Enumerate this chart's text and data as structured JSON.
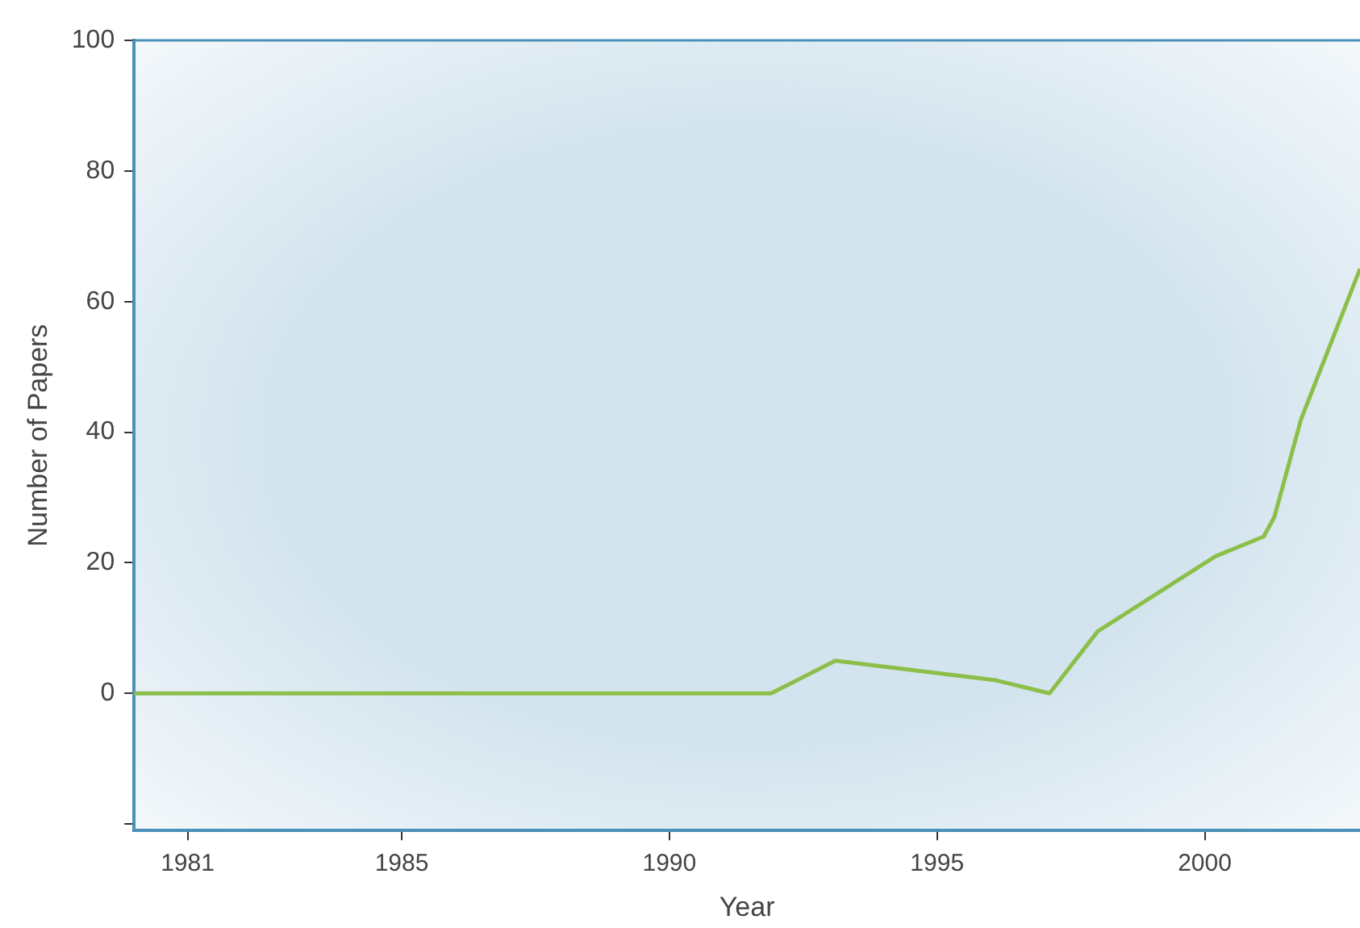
{
  "chart_data": {
    "type": "line",
    "xlabel": "Year",
    "ylabel": "Number of Papers",
    "x": [
      1980,
      1991.9,
      1993.1,
      1996.1,
      1997.1,
      1998,
      2000.2,
      2001.1,
      2001.3,
      2001.8,
      2002.9
    ],
    "series": [
      {
        "color": "#8cbf4a",
        "values": [
          0,
          0,
          5,
          2,
          0,
          9.5,
          21,
          24,
          27,
          42,
          65
        ]
      }
    ],
    "xlim": [
      1980,
      2002.9
    ],
    "xticks": [
      1981,
      1985,
      1990,
      1995,
      2000
    ],
    "ylim": [
      -21,
      100
    ],
    "yticks": [
      {
        "value": -20,
        "label": null
      },
      0,
      20,
      40,
      60,
      80,
      100
    ],
    "grid": false,
    "legend": false,
    "marker": "none",
    "line_style": "solid"
  }
}
